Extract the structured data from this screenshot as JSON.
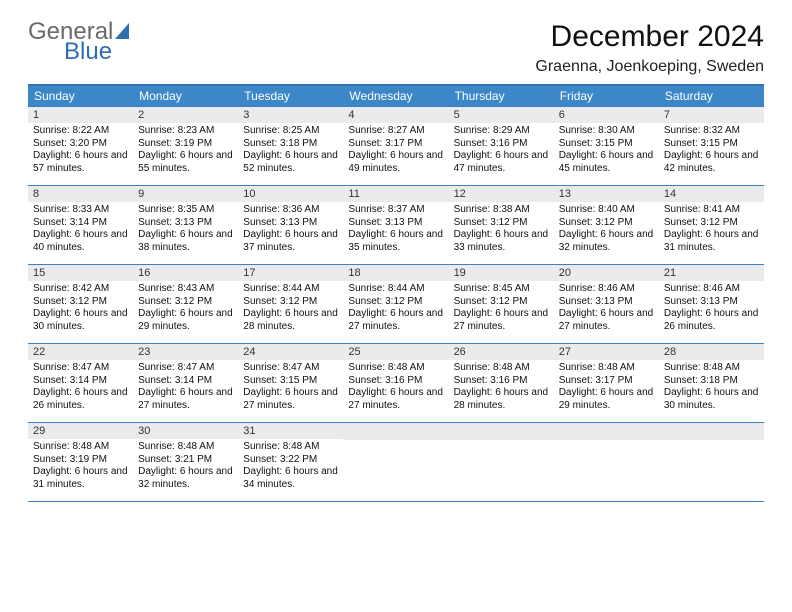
{
  "logo": {
    "line1": "General",
    "line2": "Blue"
  },
  "title": "December 2024",
  "location": "Graenna, Joenkoeping, Sweden",
  "colors": {
    "header_bar": "#3b87c8",
    "rule": "#3b7fc4",
    "daynum_bg": "#ebebeb",
    "text": "#111111",
    "logo_gray": "#6a6a6a",
    "logo_blue": "#2f6fb0"
  },
  "weekdays": [
    "Sunday",
    "Monday",
    "Tuesday",
    "Wednesday",
    "Thursday",
    "Friday",
    "Saturday"
  ],
  "weeks": [
    [
      {
        "n": "1",
        "sr": "Sunrise: 8:22 AM",
        "ss": "Sunset: 3:20 PM",
        "dl": "Daylight: 6 hours and 57 minutes."
      },
      {
        "n": "2",
        "sr": "Sunrise: 8:23 AM",
        "ss": "Sunset: 3:19 PM",
        "dl": "Daylight: 6 hours and 55 minutes."
      },
      {
        "n": "3",
        "sr": "Sunrise: 8:25 AM",
        "ss": "Sunset: 3:18 PM",
        "dl": "Daylight: 6 hours and 52 minutes."
      },
      {
        "n": "4",
        "sr": "Sunrise: 8:27 AM",
        "ss": "Sunset: 3:17 PM",
        "dl": "Daylight: 6 hours and 49 minutes."
      },
      {
        "n": "5",
        "sr": "Sunrise: 8:29 AM",
        "ss": "Sunset: 3:16 PM",
        "dl": "Daylight: 6 hours and 47 minutes."
      },
      {
        "n": "6",
        "sr": "Sunrise: 8:30 AM",
        "ss": "Sunset: 3:15 PM",
        "dl": "Daylight: 6 hours and 45 minutes."
      },
      {
        "n": "7",
        "sr": "Sunrise: 8:32 AM",
        "ss": "Sunset: 3:15 PM",
        "dl": "Daylight: 6 hours and 42 minutes."
      }
    ],
    [
      {
        "n": "8",
        "sr": "Sunrise: 8:33 AM",
        "ss": "Sunset: 3:14 PM",
        "dl": "Daylight: 6 hours and 40 minutes."
      },
      {
        "n": "9",
        "sr": "Sunrise: 8:35 AM",
        "ss": "Sunset: 3:13 PM",
        "dl": "Daylight: 6 hours and 38 minutes."
      },
      {
        "n": "10",
        "sr": "Sunrise: 8:36 AM",
        "ss": "Sunset: 3:13 PM",
        "dl": "Daylight: 6 hours and 37 minutes."
      },
      {
        "n": "11",
        "sr": "Sunrise: 8:37 AM",
        "ss": "Sunset: 3:13 PM",
        "dl": "Daylight: 6 hours and 35 minutes."
      },
      {
        "n": "12",
        "sr": "Sunrise: 8:38 AM",
        "ss": "Sunset: 3:12 PM",
        "dl": "Daylight: 6 hours and 33 minutes."
      },
      {
        "n": "13",
        "sr": "Sunrise: 8:40 AM",
        "ss": "Sunset: 3:12 PM",
        "dl": "Daylight: 6 hours and 32 minutes."
      },
      {
        "n": "14",
        "sr": "Sunrise: 8:41 AM",
        "ss": "Sunset: 3:12 PM",
        "dl": "Daylight: 6 hours and 31 minutes."
      }
    ],
    [
      {
        "n": "15",
        "sr": "Sunrise: 8:42 AM",
        "ss": "Sunset: 3:12 PM",
        "dl": "Daylight: 6 hours and 30 minutes."
      },
      {
        "n": "16",
        "sr": "Sunrise: 8:43 AM",
        "ss": "Sunset: 3:12 PM",
        "dl": "Daylight: 6 hours and 29 minutes."
      },
      {
        "n": "17",
        "sr": "Sunrise: 8:44 AM",
        "ss": "Sunset: 3:12 PM",
        "dl": "Daylight: 6 hours and 28 minutes."
      },
      {
        "n": "18",
        "sr": "Sunrise: 8:44 AM",
        "ss": "Sunset: 3:12 PM",
        "dl": "Daylight: 6 hours and 27 minutes."
      },
      {
        "n": "19",
        "sr": "Sunrise: 8:45 AM",
        "ss": "Sunset: 3:12 PM",
        "dl": "Daylight: 6 hours and 27 minutes."
      },
      {
        "n": "20",
        "sr": "Sunrise: 8:46 AM",
        "ss": "Sunset: 3:13 PM",
        "dl": "Daylight: 6 hours and 27 minutes."
      },
      {
        "n": "21",
        "sr": "Sunrise: 8:46 AM",
        "ss": "Sunset: 3:13 PM",
        "dl": "Daylight: 6 hours and 26 minutes."
      }
    ],
    [
      {
        "n": "22",
        "sr": "Sunrise: 8:47 AM",
        "ss": "Sunset: 3:14 PM",
        "dl": "Daylight: 6 hours and 26 minutes."
      },
      {
        "n": "23",
        "sr": "Sunrise: 8:47 AM",
        "ss": "Sunset: 3:14 PM",
        "dl": "Daylight: 6 hours and 27 minutes."
      },
      {
        "n": "24",
        "sr": "Sunrise: 8:47 AM",
        "ss": "Sunset: 3:15 PM",
        "dl": "Daylight: 6 hours and 27 minutes."
      },
      {
        "n": "25",
        "sr": "Sunrise: 8:48 AM",
        "ss": "Sunset: 3:16 PM",
        "dl": "Daylight: 6 hours and 27 minutes."
      },
      {
        "n": "26",
        "sr": "Sunrise: 8:48 AM",
        "ss": "Sunset: 3:16 PM",
        "dl": "Daylight: 6 hours and 28 minutes."
      },
      {
        "n": "27",
        "sr": "Sunrise: 8:48 AM",
        "ss": "Sunset: 3:17 PM",
        "dl": "Daylight: 6 hours and 29 minutes."
      },
      {
        "n": "28",
        "sr": "Sunrise: 8:48 AM",
        "ss": "Sunset: 3:18 PM",
        "dl": "Daylight: 6 hours and 30 minutes."
      }
    ],
    [
      {
        "n": "29",
        "sr": "Sunrise: 8:48 AM",
        "ss": "Sunset: 3:19 PM",
        "dl": "Daylight: 6 hours and 31 minutes."
      },
      {
        "n": "30",
        "sr": "Sunrise: 8:48 AM",
        "ss": "Sunset: 3:21 PM",
        "dl": "Daylight: 6 hours and 32 minutes."
      },
      {
        "n": "31",
        "sr": "Sunrise: 8:48 AM",
        "ss": "Sunset: 3:22 PM",
        "dl": "Daylight: 6 hours and 34 minutes."
      },
      null,
      null,
      null,
      null
    ]
  ]
}
